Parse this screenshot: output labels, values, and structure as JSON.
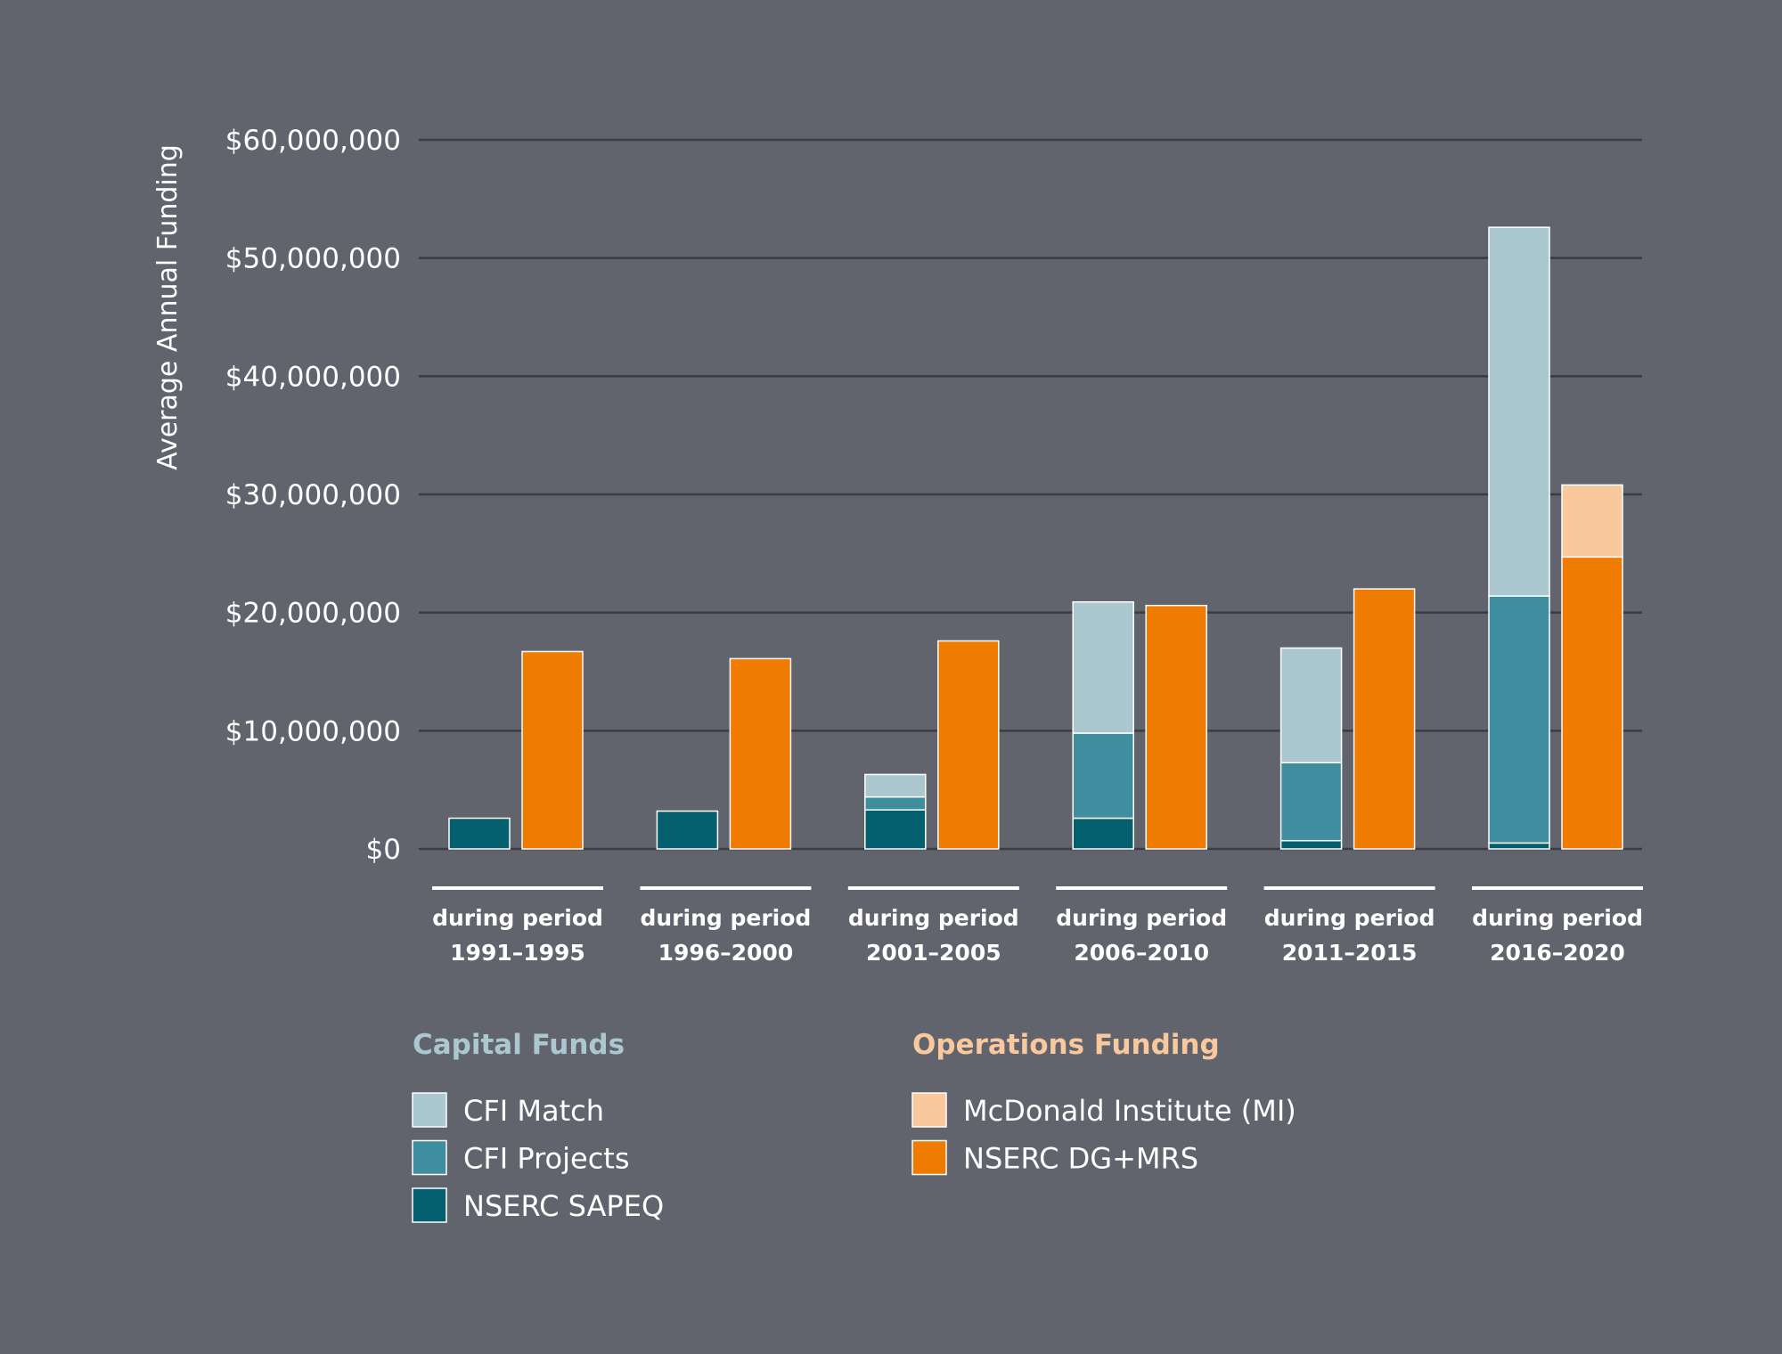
{
  "chart_data": {
    "type": "bar",
    "stacked": true,
    "ylabel": "Average Annual Funding",
    "ylim": [
      0,
      60000000
    ],
    "yticks": [
      {
        "value": 0,
        "label": "$0"
      },
      {
        "value": 10000000,
        "label": "$10,000,000"
      },
      {
        "value": 20000000,
        "label": "$20,000,000"
      },
      {
        "value": 30000000,
        "label": "$30,000,000"
      },
      {
        "value": 40000000,
        "label": "$40,000,000"
      },
      {
        "value": 50000000,
        "label": "$50,000,000"
      },
      {
        "value": 60000000,
        "label": "$60,000,000"
      }
    ],
    "grid": true,
    "categories": [
      {
        "line1": "during period",
        "line2": "1991–1995"
      },
      {
        "line1": "during period",
        "line2": "1996–2000"
      },
      {
        "line1": "during period",
        "line2": "2001–2005"
      },
      {
        "line1": "during period",
        "line2": "2006–2010"
      },
      {
        "line1": "during period",
        "line2": "2011–2015"
      },
      {
        "line1": "during period",
        "line2": "2016–2020"
      }
    ],
    "stacks": [
      {
        "group": "Capital Funds",
        "series": [
          {
            "name": "NSERC SAPEQ",
            "color": "#04606f",
            "values": [
              2600000,
              3200000,
              3300000,
              2600000,
              700000,
              500000
            ]
          },
          {
            "name": "CFI Projects",
            "color": "#3f8ea0",
            "values": [
              0,
              0,
              1100000,
              7200000,
              6600000,
              20900000
            ]
          },
          {
            "name": "CFI Match",
            "color": "#abc8d1",
            "values": [
              0,
              0,
              1900000,
              11100000,
              9700000,
              31200000
            ]
          }
        ]
      },
      {
        "group": "Operations Funding",
        "series": [
          {
            "name": "NSERC DG+MRS",
            "color": "#ef7b00",
            "values": [
              16700000,
              16100000,
              17600000,
              20600000,
              22000000,
              24700000
            ]
          },
          {
            "name": "McDonald Institute (MI)",
            "color": "#f9c89c",
            "values": [
              0,
              0,
              0,
              0,
              0,
              6100000
            ]
          }
        ]
      }
    ],
    "legend": {
      "placement": "bottom",
      "groups": [
        {
          "title": "Capital Funds",
          "color": "#abc8d1",
          "items": [
            {
              "label": "CFI Match",
              "color": "#abc8d1"
            },
            {
              "label": "CFI Projects",
              "color": "#3f8ea0"
            },
            {
              "label": "NSERC SAPEQ",
              "color": "#04606f"
            }
          ]
        },
        {
          "title": "Operations Funding",
          "color": "#f9c89c",
          "items": [
            {
              "label": "McDonald Institute (MI)",
              "color": "#f9c89c"
            },
            {
              "label": "NSERC DG+MRS",
              "color": "#ef7b00"
            }
          ]
        }
      ]
    },
    "colors": {
      "background": "#61646d",
      "gridline": "#3a3c42",
      "text": "#ffffff"
    }
  }
}
